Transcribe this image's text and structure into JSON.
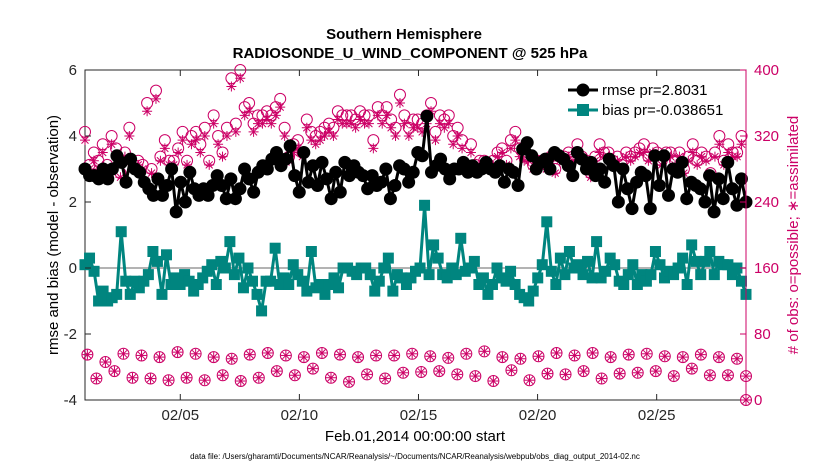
{
  "chart_data": {
    "type": "line",
    "title": "Southern Hemisphere",
    "subtitle": "RADIOSONDE_U_WIND_COMPONENT @ 525 hPa",
    "xlabel": "Feb.01,2014 00:00:00 start",
    "ylabel_left": "rmse and bias (model - observation)",
    "ylabel_right": "# of obs: o=possible; ∗=assimilated",
    "xlim": [
      1,
      28.75
    ],
    "ylim_left": [
      -4,
      6
    ],
    "ylim_right": [
      0,
      400
    ],
    "x_ticks": [
      5,
      10,
      15,
      20,
      25
    ],
    "x_tick_labels": [
      "02/05",
      "02/10",
      "02/15",
      "02/20",
      "02/25"
    ],
    "y_ticks_left": [
      -4,
      -2,
      0,
      2,
      4,
      6
    ],
    "y_tick_labels_left": [
      "-4",
      "-2",
      "0",
      "2",
      "4",
      "6"
    ],
    "y_ticks_right": [
      0,
      80,
      160,
      240,
      320,
      400
    ],
    "y_tick_labels_right": [
      "0",
      "80",
      "160",
      "240",
      "320",
      "400"
    ],
    "zero_line": 0,
    "colors": {
      "rmse": "#000000",
      "bias": "#00857f",
      "obs": "#cc0066",
      "zero_line": "#b3b3b3",
      "axis": "#262626"
    },
    "legend": {
      "placement": "top-right",
      "entries": [
        "rmse pr=2.8031",
        "bias pr=-0.038651"
      ]
    },
    "series": [
      {
        "name": "rmse",
        "axis": "left",
        "marker": "circle",
        "values": [
          3.0,
          2.8,
          2.8,
          2.7,
          3.0,
          2.7,
          3.0,
          3.4,
          3.2,
          2.6,
          3.3,
          3.0,
          2.9,
          2.6,
          2.4,
          2.2,
          2.7,
          2.2,
          2.5,
          3.0,
          1.7,
          2.6,
          2.0,
          2.9,
          2.4,
          2.2,
          2.4,
          2.2,
          2.5,
          2.8,
          2.5,
          2.1,
          2.7,
          2.1,
          2.4,
          3.0,
          2.7,
          2.3,
          2.9,
          3.1,
          3.0,
          3.3,
          3.5,
          3.1,
          3.3,
          3.7,
          2.8,
          2.3,
          3.5,
          2.6,
          3.1,
          2.5,
          3.2,
          2.7,
          2.1,
          2.9,
          2.3,
          3.2,
          2.8,
          3.1,
          2.9,
          2.8,
          2.4,
          2.8,
          2.5,
          2.6,
          3.0,
          2.1,
          2.5,
          3.1,
          3.0,
          2.6,
          2.9,
          3.5,
          3.4,
          4.6,
          2.9,
          3.1,
          3.3,
          3.0,
          2.7,
          3.0,
          3.0,
          3.2,
          2.9,
          3.1,
          2.9,
          3.0,
          3.2,
          3.0,
          2.9,
          3.1,
          2.6,
          3.0,
          2.9,
          2.5,
          3.6,
          3.8,
          3.4,
          3.0,
          3.2,
          3.3,
          3.0,
          3.5,
          3.4,
          3.3,
          3.1,
          2.8,
          3.5,
          3.3,
          3.0,
          3.2,
          2.8,
          3.0,
          2.6,
          3.3,
          3.1,
          2.0,
          3.0,
          2.4,
          1.8,
          2.6,
          2.9,
          2.8,
          1.8,
          3.4,
          2.5,
          3.4,
          2.2,
          3.0,
          2.9,
          3.2,
          2.1,
          2.6,
          2.5,
          2.4,
          2.0,
          2.8,
          1.7,
          2.7,
          2.1,
          3.2,
          2.4,
          1.9,
          2.7,
          2.0
        ]
      },
      {
        "name": "bias",
        "axis": "left",
        "marker": "square",
        "values": [
          0.1,
          0.3,
          -0.1,
          -1.0,
          -0.7,
          -1.0,
          -0.9,
          -0.8,
          1.1,
          -0.4,
          -0.8,
          -0.4,
          -0.6,
          -0.4,
          -0.2,
          0.5,
          0.2,
          -0.8,
          0.4,
          -0.5,
          -0.3,
          -0.5,
          -0.2,
          -0.4,
          -0.7,
          -0.5,
          -0.3,
          -0.1,
          0.1,
          -0.5,
          0.2,
          0.0,
          0.8,
          -0.2,
          0.3,
          -0.6,
          0.0,
          -0.4,
          -0.8,
          -1.3,
          -0.4,
          -0.4,
          0.6,
          -0.5,
          -0.3,
          -0.5,
          0.1,
          -0.2,
          -0.4,
          -0.7,
          0.5,
          -0.6,
          -0.5,
          -0.8,
          -0.5,
          -0.3,
          -0.6,
          0.0,
          0.0,
          -0.1,
          -0.2,
          0.0,
          0.0,
          -0.2,
          -0.7,
          -0.4,
          0.0,
          0.3,
          -0.7,
          -0.2,
          -0.3,
          -0.5,
          -0.3,
          -0.1,
          0.0,
          1.9,
          -0.2,
          0.7,
          0.3,
          -0.2,
          -0.3,
          0.0,
          -0.2,
          0.9,
          -0.1,
          0.0,
          0.2,
          -0.5,
          -0.3,
          -0.8,
          -0.5,
          0.0,
          -0.3,
          -0.4,
          -0.1,
          -0.5,
          -0.8,
          -0.9,
          -1.0,
          -0.7,
          -0.3,
          0.1,
          1.4,
          -0.1,
          -0.5,
          0.3,
          -0.2,
          0.5,
          0.0,
          0.1,
          -0.2,
          0.2,
          -0.3,
          0.8,
          -0.3,
          -0.1,
          0.3,
          0.1,
          -0.4,
          -0.5,
          -0.2,
          0.1,
          -0.5,
          -0.2,
          -0.4,
          -0.2,
          0.5,
          0.1,
          -0.3,
          -0.1,
          -0.2,
          0.0,
          0.3,
          -0.5,
          0.7,
          0.2,
          -0.2,
          0.2,
          0.5,
          -0.2,
          0.2,
          0.1,
          0.1,
          -0.2,
          0.0,
          -0.4,
          -0.8
        ]
      },
      {
        "name": "obs possible",
        "axis": "right",
        "marker": "circle-open",
        "values": [
          325,
          285,
          300,
          290,
          310,
          285,
          320,
          305,
          275,
          300,
          330,
          285,
          290,
          285,
          360,
          280,
          375,
          295,
          315,
          290,
          290,
          305,
          325,
          290,
          320,
          325,
          310,
          330,
          290,
          345,
          320,
          300,
          330,
          390,
          335,
          400,
          355,
          360,
          335,
          345,
          345,
          350,
          345,
          355,
          365,
          330,
          295,
          310,
          315,
          300,
          340,
          325,
          320,
          325,
          330,
          335,
          330,
          350,
          345,
          345,
          345,
          340,
          350,
          345,
          345,
          315,
          355,
          345,
          355,
          340,
          330,
          370,
          345,
          330,
          340,
          340,
          335,
          345,
          360,
          325,
          345,
          340,
          345,
          320,
          330,
          315,
          285,
          310,
          285,
          290,
          290,
          285,
          290,
          300,
          305,
          290,
          315,
          325,
          305,
          295,
          295,
          285,
          290,
          290,
          285,
          295,
          280,
          295,
          295,
          300,
          295,
          310,
          295,
          290,
          275,
          295,
          310,
          300,
          300,
          290,
          295,
          285,
          300,
          295,
          300,
          305,
          310,
          295,
          305,
          300,
          290,
          300,
          300,
          290,
          300,
          280,
          295,
          310,
          290,
          300,
          295,
          275,
          300,
          320,
          290,
          310,
          300,
          300,
          320,
          0
        ]
      },
      {
        "name": "obs assimilated",
        "axis": "right",
        "marker": "asterisk",
        "values": [
          315,
          280,
          290,
          280,
          300,
          280,
          310,
          295,
          270,
          295,
          320,
          280,
          285,
          280,
          350,
          275,
          365,
          290,
          305,
          285,
          285,
          300,
          315,
          285,
          310,
          315,
          300,
          320,
          285,
          335,
          310,
          295,
          320,
          380,
          325,
          390,
          345,
          350,
          325,
          335,
          335,
          340,
          335,
          345,
          355,
          320,
          290,
          300,
          305,
          295,
          330,
          315,
          310,
          315,
          320,
          325,
          320,
          340,
          335,
          335,
          335,
          330,
          340,
          335,
          335,
          305,
          345,
          335,
          345,
          330,
          320,
          360,
          335,
          320,
          330,
          330,
          325,
          335,
          350,
          315,
          335,
          330,
          335,
          310,
          320,
          305,
          280,
          300,
          280,
          285,
          285,
          280,
          285,
          295,
          300,
          285,
          305,
          315,
          295,
          290,
          290,
          280,
          285,
          285,
          280,
          290,
          275,
          290,
          290,
          295,
          290,
          300,
          290,
          285,
          270,
          290,
          300,
          295,
          295,
          285,
          290,
          280,
          295,
          290,
          295,
          300,
          300,
          290,
          300,
          295,
          285,
          295,
          295,
          285,
          295,
          275,
          290,
          300,
          285,
          295,
          290,
          270,
          295,
          310,
          285,
          300,
          295,
          295,
          310,
          0
        ]
      },
      {
        "name": "obs possible (00Z)",
        "axis": "right",
        "marker": "circle-open",
        "values": [
          55,
          26,
          46,
          35,
          56,
          27,
          54,
          26,
          52,
          24,
          58,
          27,
          56,
          24,
          52,
          30,
          50,
          23,
          55,
          27,
          57,
          35,
          54,
          30,
          52,
          38,
          57,
          27,
          55,
          22,
          52,
          31,
          54,
          26,
          54,
          33,
          56,
          34,
          53,
          35,
          51,
          31,
          56,
          29,
          59,
          23,
          52,
          36,
          50,
          24,
          53,
          32,
          57,
          31,
          54,
          35,
          57,
          26,
          52,
          32,
          55,
          33,
          56,
          35,
          53,
          29,
          52,
          38,
          55,
          30,
          52,
          30,
          50,
          29
        ]
      },
      {
        "name": "obs assimilated (00Z)",
        "axis": "right",
        "marker": "asterisk",
        "values": [
          55,
          26,
          46,
          35,
          56,
          27,
          54,
          26,
          52,
          24,
          58,
          27,
          56,
          24,
          52,
          30,
          50,
          23,
          55,
          27,
          57,
          35,
          54,
          30,
          52,
          38,
          57,
          27,
          55,
          22,
          52,
          31,
          54,
          26,
          54,
          33,
          56,
          34,
          53,
          35,
          51,
          31,
          56,
          29,
          59,
          23,
          52,
          36,
          50,
          24,
          53,
          32,
          57,
          31,
          54,
          35,
          57,
          26,
          52,
          32,
          55,
          33,
          56,
          35,
          53,
          29,
          52,
          38,
          55,
          30,
          52,
          30,
          50,
          29
        ]
      }
    ],
    "footnote": "data file: /Users/gharamti/Documents/NCAR/Reanalysis/~/Documents/NCAR/Reanalysis/webpub/obs_diag_output_2014-02.nc"
  }
}
